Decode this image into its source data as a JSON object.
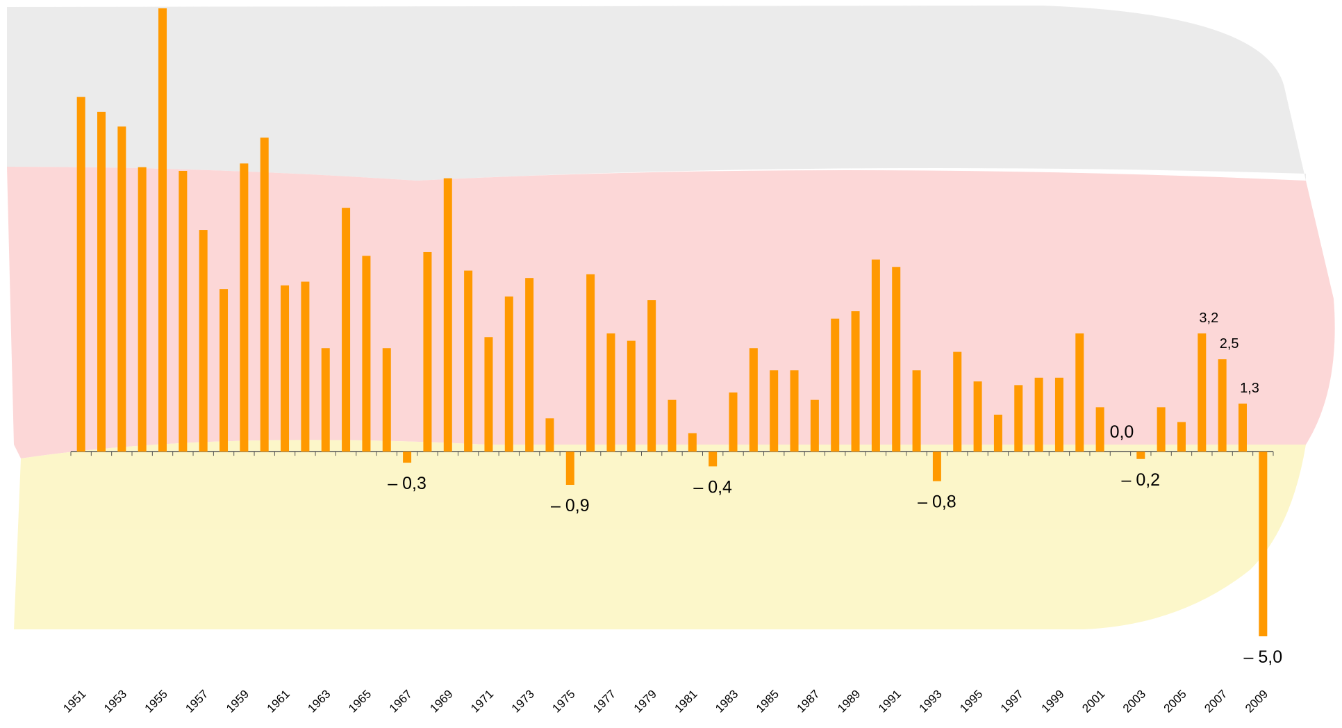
{
  "chart_data": {
    "type": "bar",
    "categories": [
      "1951",
      null,
      "1953",
      null,
      "1955",
      null,
      "1957",
      null,
      "1959",
      null,
      "1961",
      null,
      "1963",
      null,
      "1965",
      null,
      "1967",
      null,
      "1969",
      null,
      "1971",
      null,
      "1973",
      null,
      "1975",
      null,
      "1977",
      null,
      "1979",
      null,
      "1981",
      null,
      "1983",
      null,
      "1985",
      null,
      "1987",
      null,
      "1989",
      null,
      "1991",
      null,
      "1993",
      null,
      "1995",
      null,
      "1997",
      null,
      "1999",
      null,
      "2001",
      null,
      "2003",
      null,
      "2005",
      null,
      "2007",
      null,
      "2009"
    ],
    "values": [
      9.6,
      9.2,
      8.8,
      7.7,
      12.0,
      7.6,
      6.0,
      4.4,
      7.8,
      8.5,
      4.5,
      4.6,
      2.8,
      6.6,
      5.3,
      2.8,
      -0.3,
      5.4,
      7.4,
      4.9,
      3.1,
      4.2,
      4.7,
      0.9,
      -0.9,
      4.8,
      3.2,
      3.0,
      4.1,
      1.4,
      0.5,
      -0.4,
      1.6,
      2.8,
      2.2,
      2.2,
      1.4,
      3.6,
      3.8,
      5.2,
      5.0,
      2.2,
      -0.8,
      2.7,
      1.9,
      1.0,
      1.8,
      2.0,
      2.0,
      3.2,
      1.2,
      0.0,
      -0.2,
      1.2,
      0.8,
      3.2,
      2.5,
      1.3,
      -5.0
    ],
    "value_labels": [
      null,
      null,
      null,
      null,
      null,
      null,
      null,
      null,
      null,
      null,
      null,
      null,
      null,
      null,
      null,
      null,
      "– 0,3",
      null,
      null,
      null,
      null,
      null,
      null,
      null,
      "– 0,9",
      null,
      null,
      null,
      null,
      null,
      null,
      "– 0,4",
      null,
      null,
      null,
      null,
      null,
      null,
      null,
      null,
      null,
      null,
      "– 0,8",
      null,
      null,
      null,
      null,
      null,
      null,
      null,
      null,
      "0,0",
      "– 0,2",
      null,
      null,
      "3,2",
      "2,5",
      "1,3",
      "– 5,0"
    ],
    "color": "#ff9900",
    "ylim": [
      -5,
      12
    ]
  }
}
